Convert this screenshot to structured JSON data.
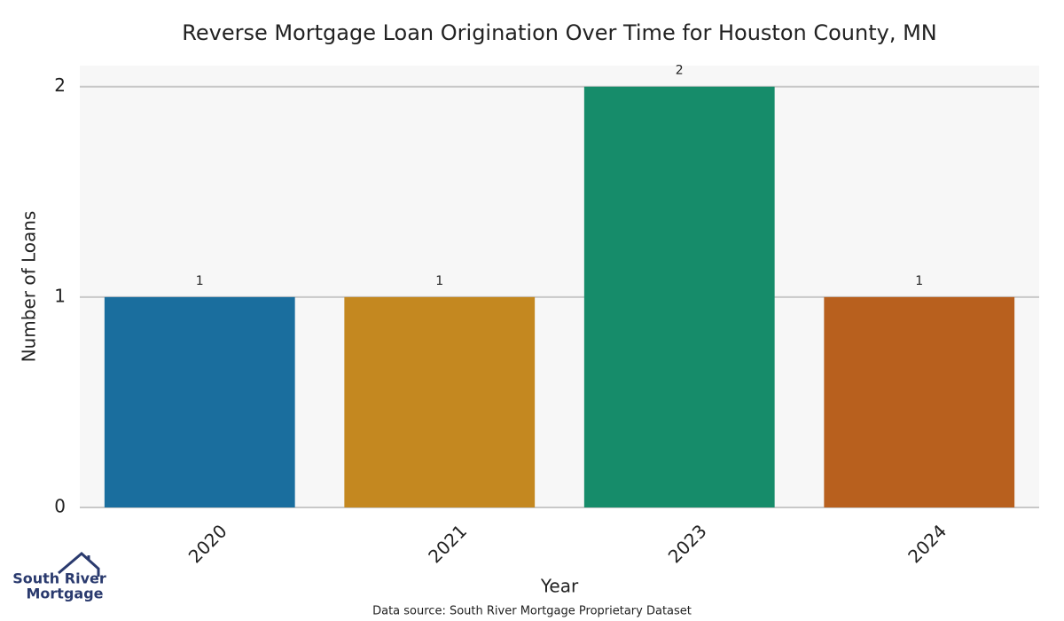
{
  "chart_data": {
    "type": "bar",
    "title": "Reverse Mortgage Loan Origination Over Time for Houston County, MN",
    "x_label": "Year",
    "y_label": "Number of Loans",
    "categories": [
      "2020",
      "2021",
      "2023",
      "2024"
    ],
    "values": [
      1,
      1,
      2,
      1
    ],
    "colors": [
      "#1a6e9e",
      "#c48820",
      "#168c6a",
      "#b8601e"
    ],
    "ylim": [
      0,
      2.1
    ],
    "yticks": [
      0,
      1,
      2
    ],
    "grid": true,
    "source": "Data source: South River Mortgage Proprietary Dataset"
  },
  "logo": {
    "line1": "South River",
    "line2": "Mortgage"
  }
}
